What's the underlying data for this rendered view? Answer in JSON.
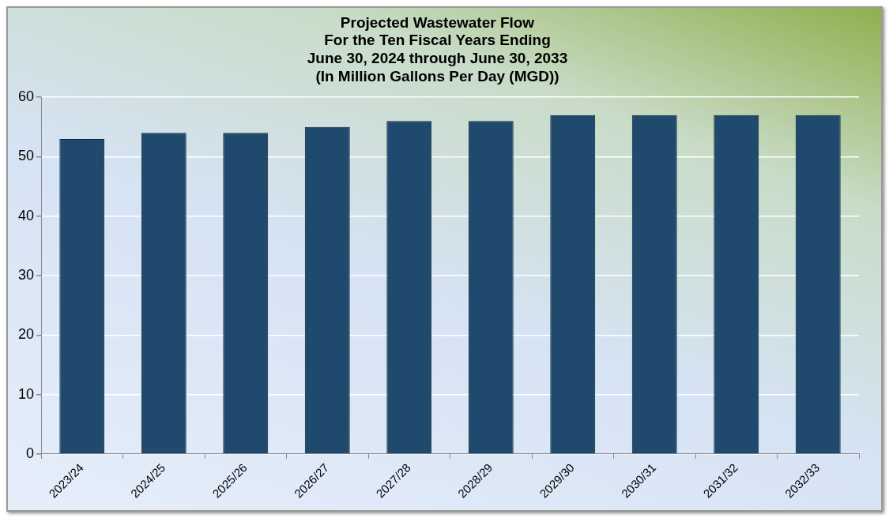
{
  "chart_data": {
    "type": "bar",
    "title": "Projected Wastewater Flow\nFor the Ten Fiscal Years Ending\nJune 30, 2024 through June 30, 2033\n(In Million Gallons Per Day (MGD))",
    "categories": [
      "2023/24",
      "2024/25",
      "2025/26",
      "2026/27",
      "2027/28",
      "2028/29",
      "2029/30",
      "2030/31",
      "2031/32",
      "2032/33"
    ],
    "values": [
      53,
      54,
      54,
      55,
      56,
      56,
      57,
      57,
      57,
      57
    ],
    "color": "#1f4a6e",
    "ylim": [
      0,
      60
    ],
    "yticks": [
      0,
      10,
      20,
      30,
      40,
      50,
      60
    ],
    "grid": "y",
    "legend": false
  }
}
